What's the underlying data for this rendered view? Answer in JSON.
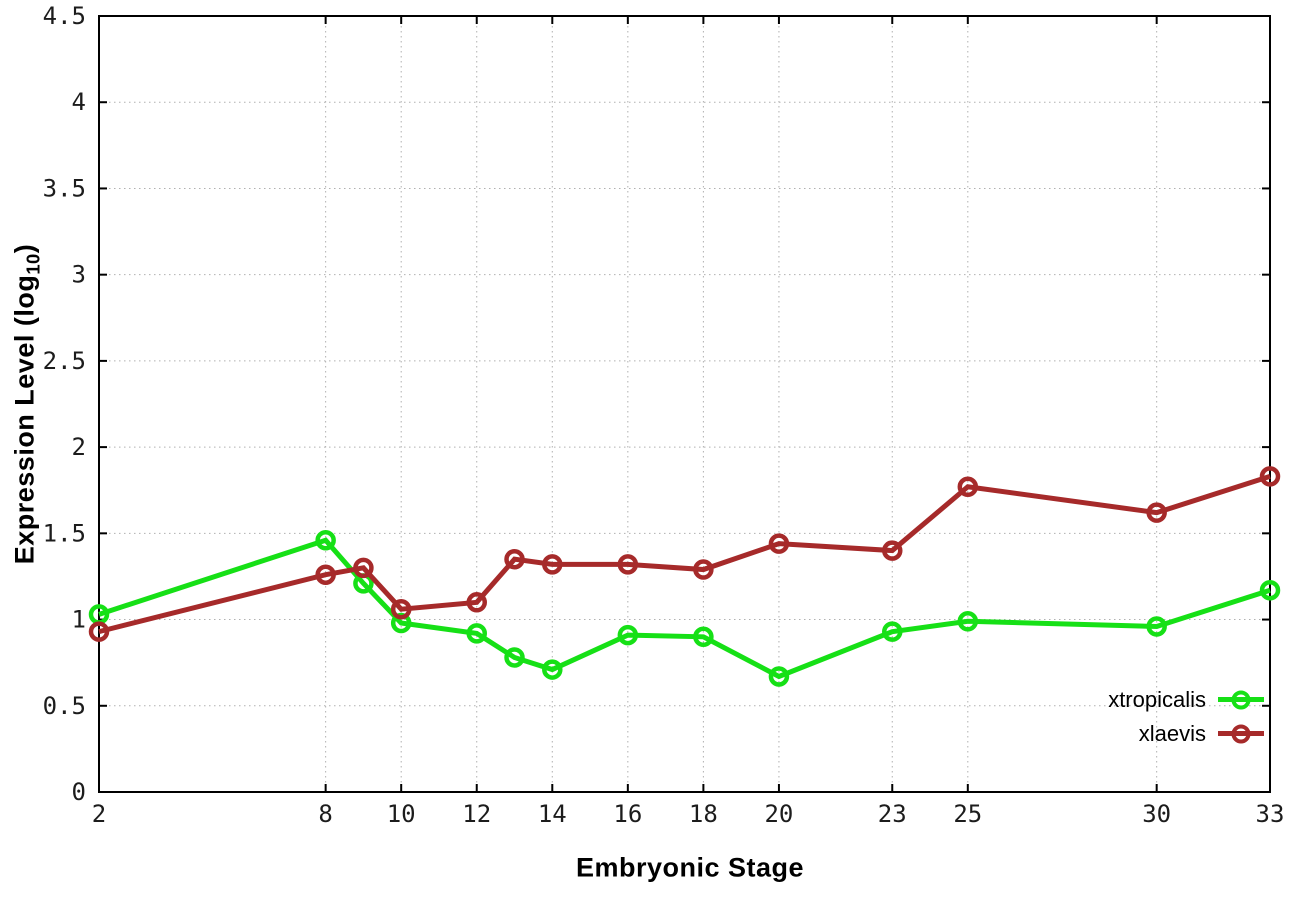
{
  "figure": {
    "background": "#ffffff",
    "border_color": "#000000",
    "grid_color": "#b0b0b0",
    "tick_label_color": "#1c1c1c",
    "xlabel": "Embryonic Stage",
    "ylabel_prefix": "Expression Level (log",
    "ylabel_sub": "10",
    "ylabel_suffix": ")"
  },
  "chart_data": {
    "type": "line",
    "title": "",
    "xlabel": "Embryonic Stage",
    "ylabel": "Expression Level (log10)",
    "xlim": [
      2,
      33
    ],
    "ylim": [
      0,
      4.5
    ],
    "xticks": [
      2,
      8,
      10,
      12,
      14,
      16,
      18,
      20,
      23,
      25,
      30,
      33
    ],
    "yticks": [
      0,
      0.5,
      1,
      1.5,
      2,
      2.5,
      3,
      3.5,
      4,
      4.5
    ],
    "grid": true,
    "legend_position": "inside-bottom-right",
    "x": [
      2,
      8,
      9,
      10,
      12,
      13,
      14,
      16,
      18,
      20,
      23,
      25,
      30,
      33
    ],
    "series": [
      {
        "name": "xtropicalis",
        "color": "#16e016",
        "values": [
          1.03,
          1.46,
          1.21,
          0.98,
          0.92,
          0.78,
          0.71,
          0.91,
          0.9,
          0.67,
          0.93,
          0.99,
          0.96,
          1.17
        ]
      },
      {
        "name": "xlaevis",
        "color": "#a62a2a",
        "values": [
          0.93,
          1.26,
          1.3,
          1.06,
          1.1,
          1.35,
          1.32,
          1.32,
          1.29,
          1.44,
          1.4,
          1.77,
          1.62,
          1.83
        ]
      }
    ]
  }
}
